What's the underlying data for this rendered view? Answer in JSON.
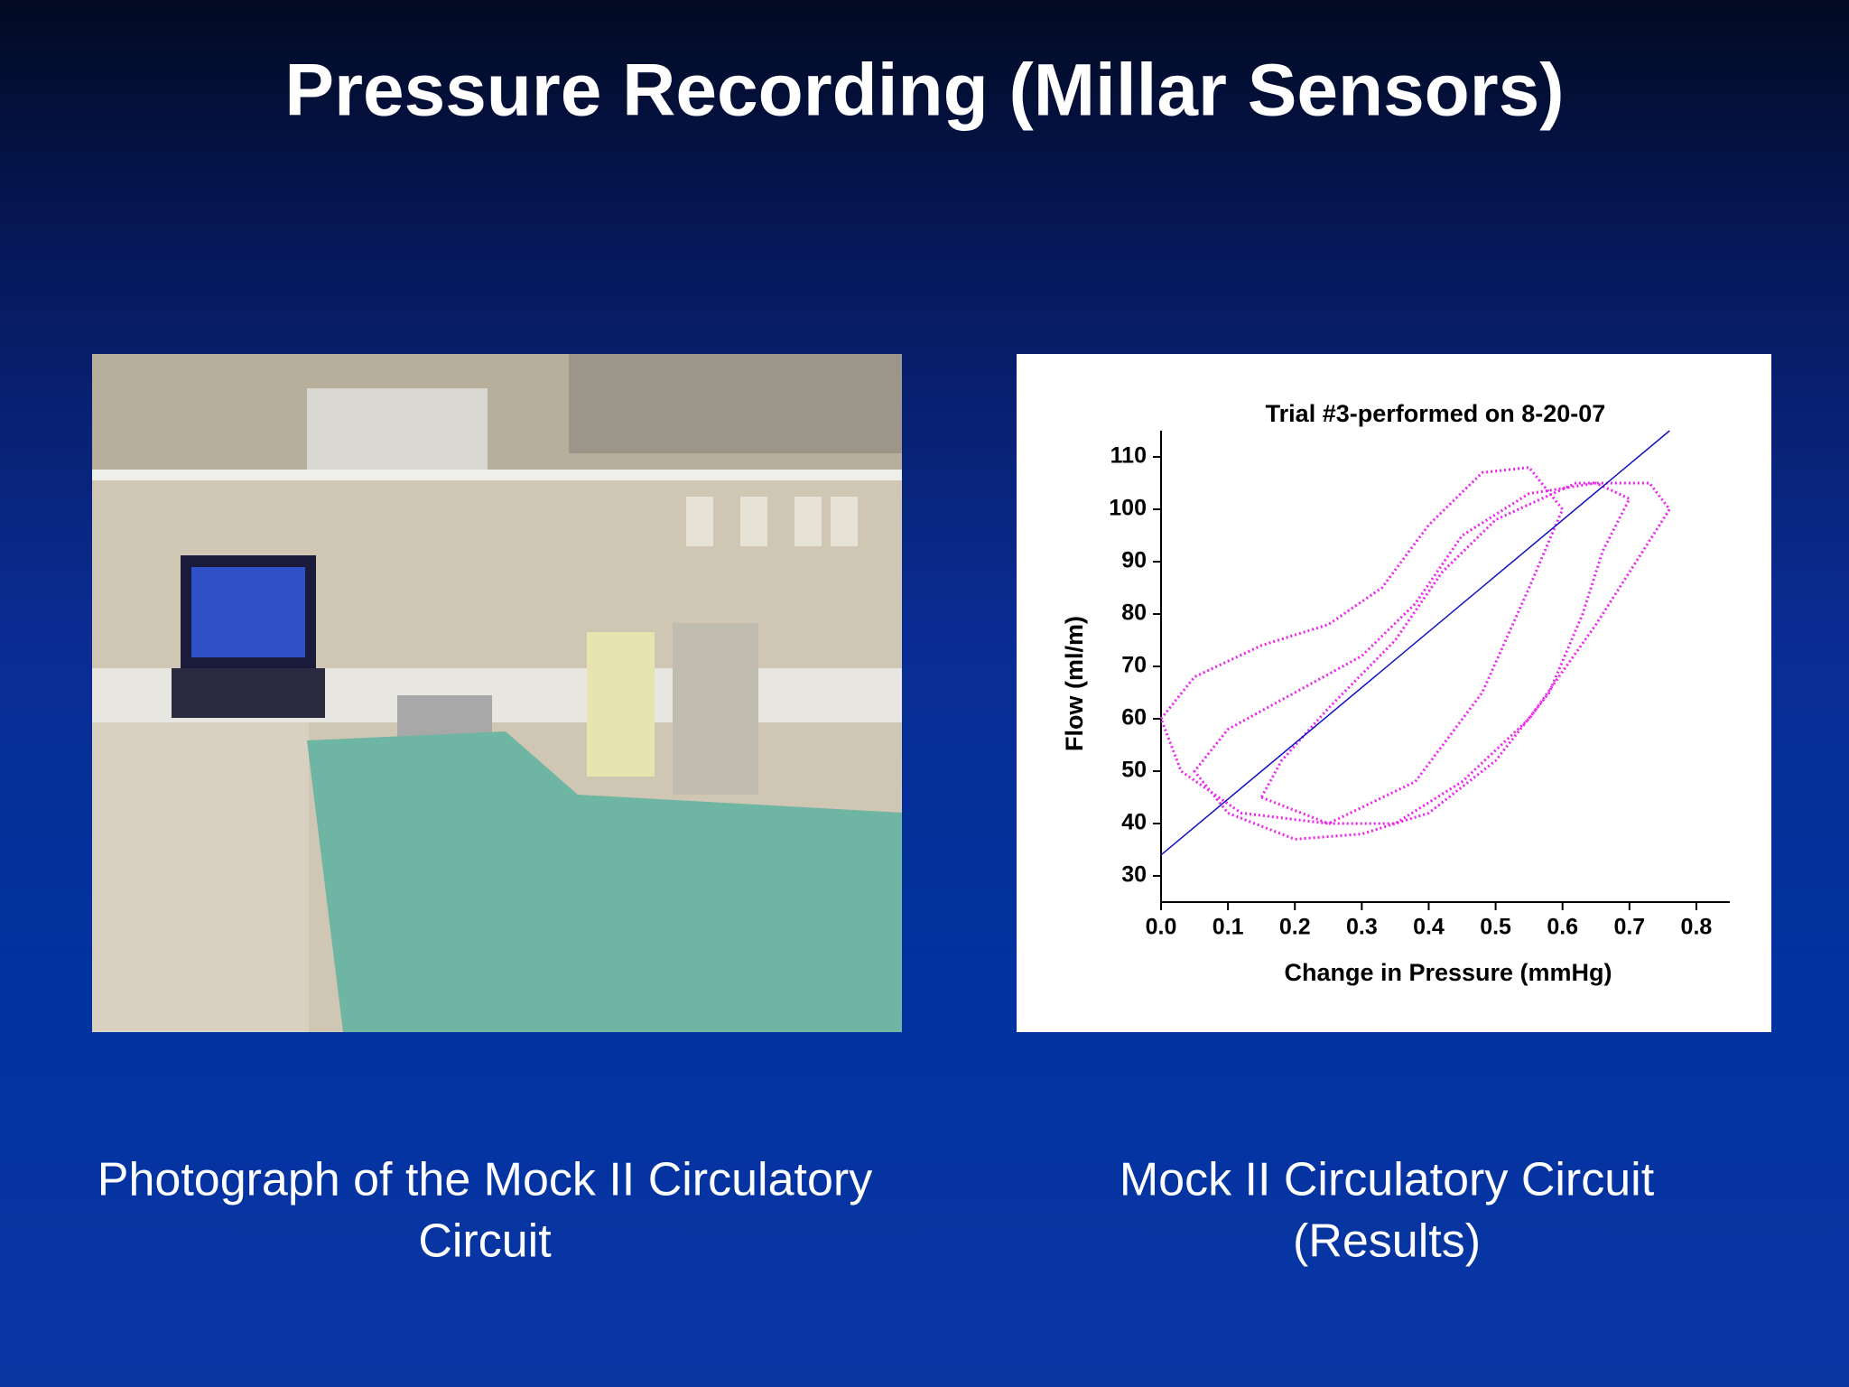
{
  "title": "Pressure Recording (Millar Sensors)",
  "photo": {
    "caption_lines": [
      "Photograph of the Mock II Circulatory",
      "Circuit"
    ]
  },
  "chart_caption_lines": [
    "Mock II Circulatory Circuit",
    "(Results)"
  ],
  "chart_data": {
    "type": "line",
    "title": "Trial #3-performed on 8-20-07",
    "x_label": "Change in Pressure (mmHg)",
    "y_label": "Flow (ml/m)",
    "xlim": [
      0,
      0.85
    ],
    "ylim": [
      25,
      115
    ],
    "xticks": [
      {
        "value": 0,
        "label": "0.0"
      },
      0.1,
      0.2,
      0.3,
      0.4,
      0.5,
      0.6,
      0.7,
      0.8
    ],
    "yticks": [
      30,
      40,
      50,
      60,
      70,
      80,
      90,
      100,
      110
    ],
    "series": [
      {
        "color": "#ee22ee",
        "dotted": true,
        "x": [
          0.1,
          0.2,
          0.3,
          0.4,
          0.5,
          0.58,
          0.63,
          0.66,
          0.7,
          0.65,
          0.55,
          0.45,
          0.38,
          0.3,
          0.2,
          0.1,
          0.05,
          0.1
        ],
        "values": [
          42,
          37,
          38,
          42,
          52,
          65,
          80,
          92,
          102,
          105,
          103,
          95,
          82,
          72,
          65,
          58,
          50,
          42
        ]
      },
      {
        "color": "#ee22ee",
        "dotted": true,
        "x": [
          0.0,
          0.05,
          0.15,
          0.25,
          0.33,
          0.4,
          0.48,
          0.55,
          0.6,
          0.55,
          0.48,
          0.38,
          0.25,
          0.12,
          0.03,
          0.0
        ],
        "values": [
          60,
          68,
          74,
          78,
          85,
          97,
          107,
          108,
          100,
          85,
          65,
          48,
          40,
          42,
          50,
          60
        ]
      },
      {
        "color": "#ee22ee",
        "dotted": true,
        "x": [
          0.15,
          0.25,
          0.35,
          0.45,
          0.55,
          0.65,
          0.72,
          0.76,
          0.73,
          0.62,
          0.5,
          0.42,
          0.35,
          0.25,
          0.18,
          0.15
        ],
        "values": [
          45,
          40,
          40,
          48,
          60,
          78,
          92,
          100,
          105,
          105,
          98,
          88,
          75,
          62,
          52,
          45
        ]
      },
      {
        "color": "#1010c0",
        "dotted": false,
        "x": [
          0.0,
          0.76
        ],
        "values": [
          34,
          115
        ]
      }
    ]
  }
}
